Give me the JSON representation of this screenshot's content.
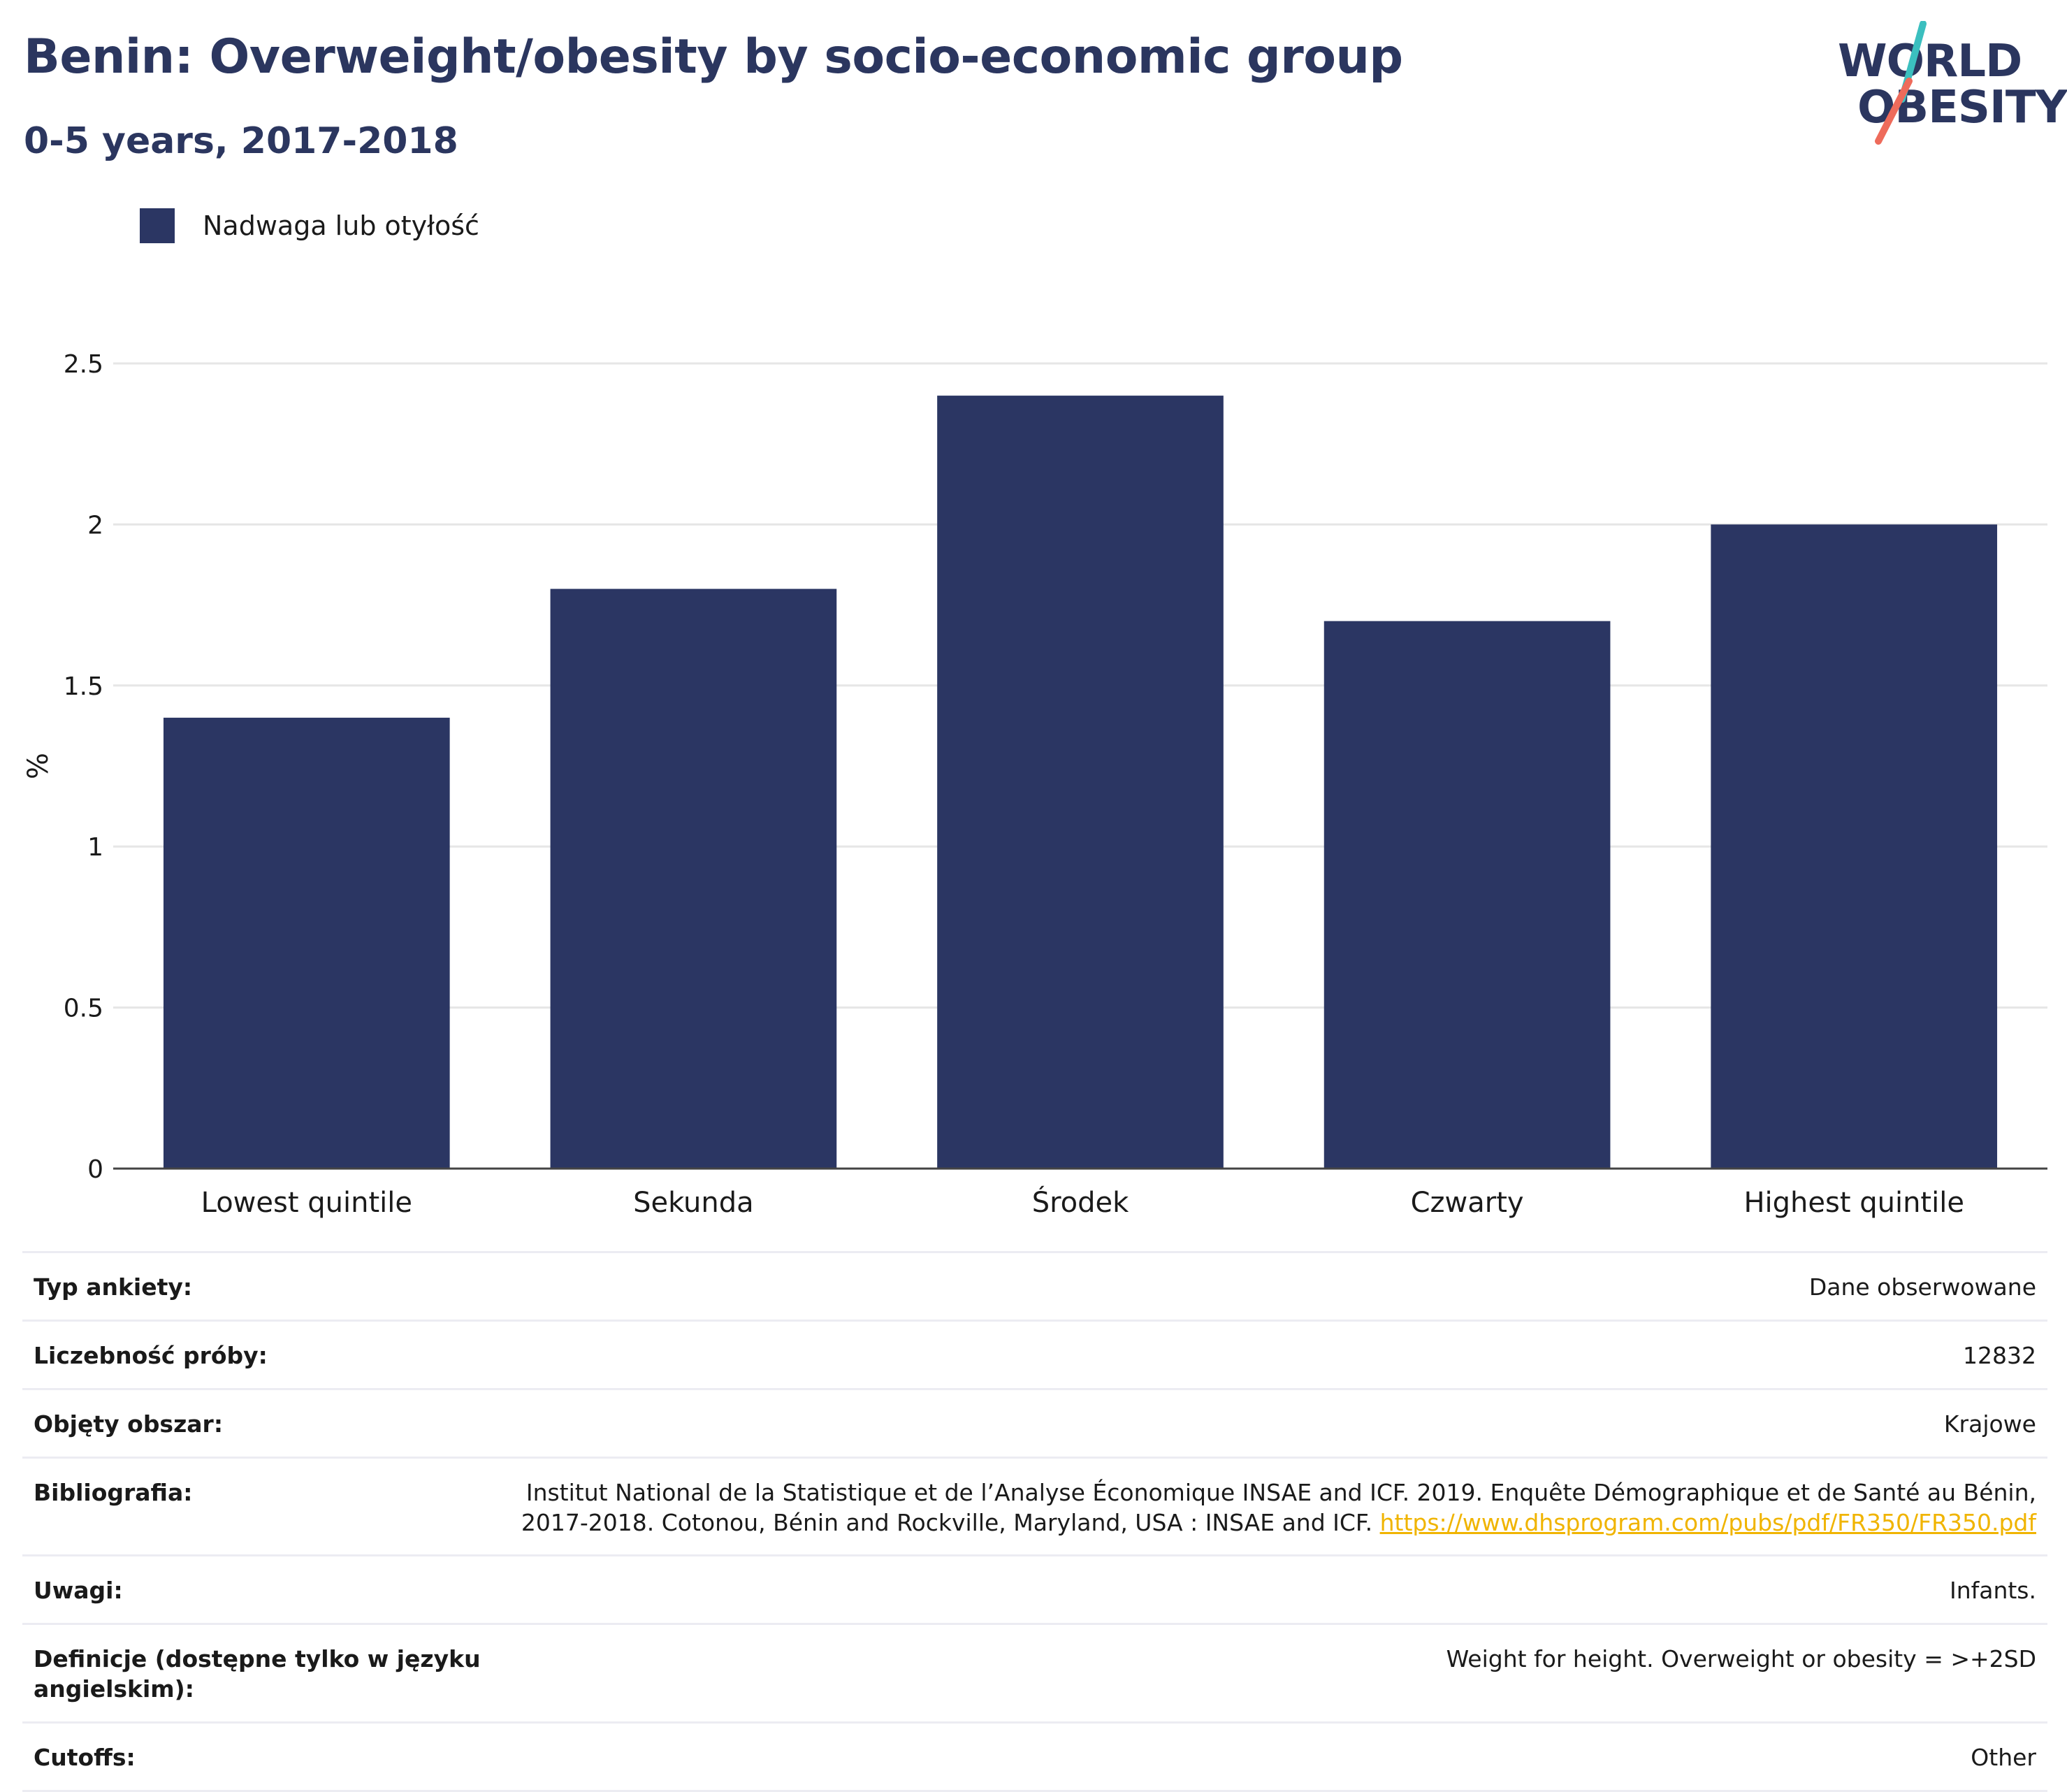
{
  "header": {
    "title": "Benin: Overweight/obesity by socio-economic group",
    "subtitle": "0-5 years, 2017-2018"
  },
  "logo": {
    "line1": "WORLD",
    "line2": "OBESITY",
    "accent_teal": "#3bbfbf",
    "accent_coral": "#ee6b5b"
  },
  "colors": {
    "bar": "#2b3663",
    "text_dark": "#2b365f",
    "link": "#f0b400",
    "grid": "#e6e6e6"
  },
  "chart_data": {
    "type": "bar",
    "categories": [
      "Lowest quintile",
      "Sekunda",
      "Środek",
      "Czwarty",
      "Highest quintile"
    ],
    "series": [
      {
        "name": "Nadwaga lub otyłość",
        "values": [
          1.4,
          1.8,
          2.4,
          1.7,
          2.0
        ]
      }
    ],
    "ylabel": "%",
    "ylim": [
      0,
      2.5
    ],
    "yticks": [
      0,
      0.5,
      1,
      1.5,
      2,
      2.5
    ],
    "ytick_labels": [
      "0",
      "0.5",
      "1",
      "1.5",
      "2",
      "2.5"
    ],
    "grid": true,
    "legend_position": "top-left"
  },
  "meta": [
    {
      "key": "Typ ankiety:",
      "value": "Dane obserwowane"
    },
    {
      "key": "Liczebność próby:",
      "value": "12832"
    },
    {
      "key": "Objęty obszar:",
      "value": "Krajowe"
    },
    {
      "key": "Bibliografia:",
      "value": "Institut National de la Statistique et de l’Analyse Économique INSAE and ICF. 2019. Enquête Démographique et de Santé au Bénin, 2017-2018. Cotonou, Bénin and Rockville, Maryland, USA : INSAE and ICF.",
      "link": "https://www.dhsprogram.com/pubs/pdf/FR350/FR350.pdf"
    },
    {
      "key": "Uwagi:",
      "value": "Infants."
    },
    {
      "key": "Definicje (dostępne tylko w języku angielskim):",
      "value": "Weight for height. Overweight or obesity = >+2SD"
    },
    {
      "key": "Cutoffs:",
      "value": "Other"
    }
  ]
}
